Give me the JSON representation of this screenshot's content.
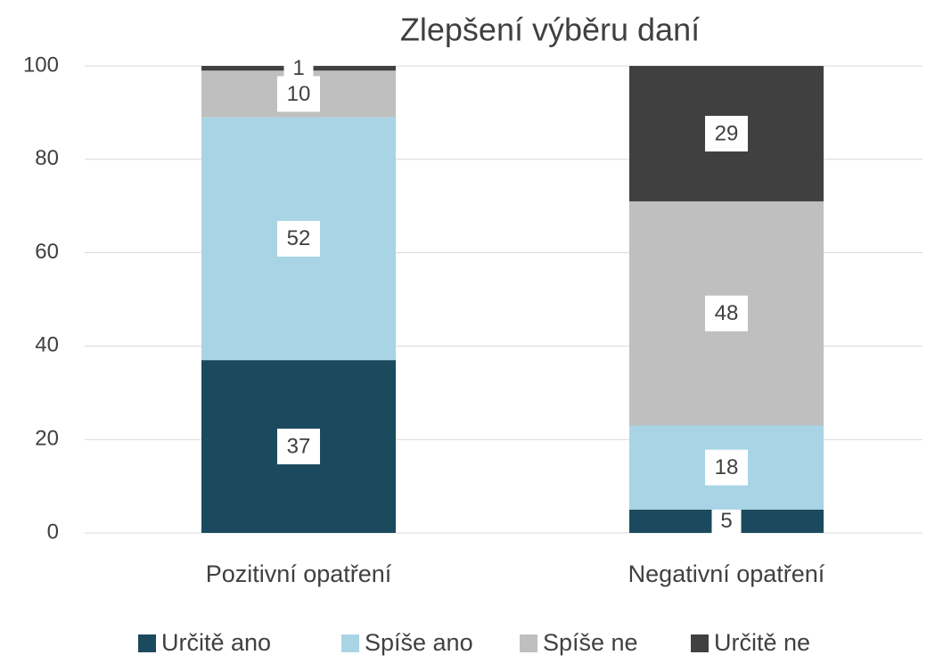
{
  "chart_data": {
    "type": "stacked_bar",
    "title": "Zlepšení výběru daní",
    "categories": [
      "Pozitivní opatření",
      "Negativní opatření"
    ],
    "series": [
      {
        "name": "Určitě ano",
        "color": "#1b4a5e",
        "values": [
          37,
          5
        ]
      },
      {
        "name": "Spíše ano",
        "color": "#a8d4e6",
        "values": [
          52,
          18
        ]
      },
      {
        "name": "Spíše ne",
        "color": "#bfbfbf",
        "values": [
          10,
          48
        ]
      },
      {
        "name": "Určitě ne",
        "color": "#404040",
        "values": [
          1,
          29
        ]
      }
    ],
    "ylim": [
      0,
      100
    ],
    "yticks": [
      0,
      20,
      40,
      60,
      80,
      100
    ],
    "grid": true,
    "legend": "bottom"
  }
}
